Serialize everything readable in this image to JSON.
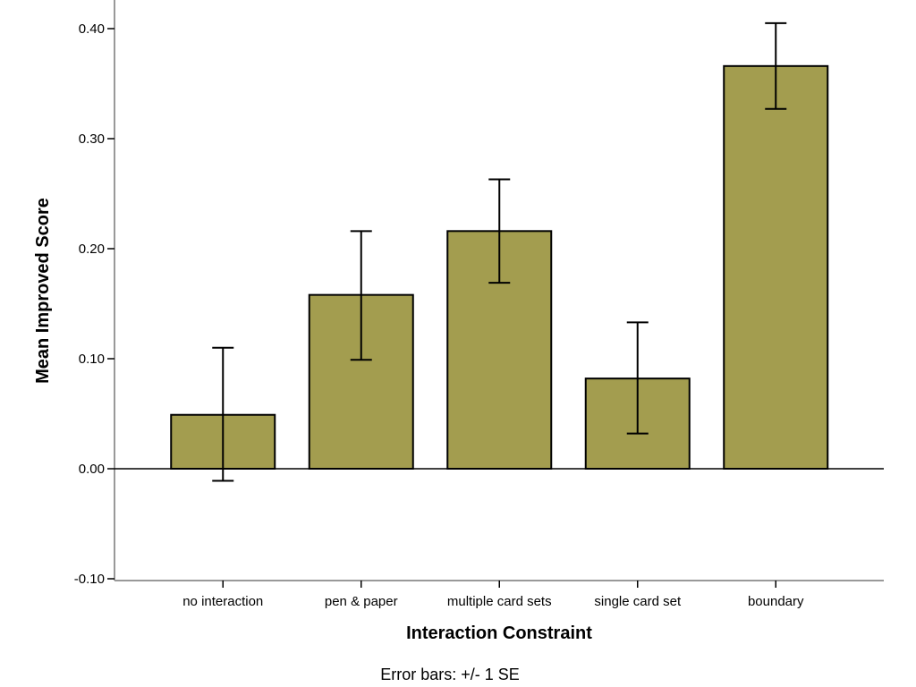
{
  "colors": {
    "bar_fill": "#a39d4f",
    "bar_stroke": "#000000",
    "axis_frame": "#999999"
  },
  "chart_data": {
    "type": "bar",
    "title": "",
    "xlabel": "Interaction Constraint",
    "ylabel": "Mean Improved Score",
    "ylim": [
      -0.1,
      0.4
    ],
    "yticks": [
      -0.1,
      0.0,
      0.1,
      0.2,
      0.3,
      0.4
    ],
    "ytick_labels": [
      "-0.10",
      "0.00",
      "0.10",
      "0.20",
      "0.30",
      "0.40"
    ],
    "categories": [
      "no interaction",
      "pen & paper",
      "multiple card sets",
      "single card set",
      "boundary"
    ],
    "values": [
      0.049,
      0.158,
      0.216,
      0.082,
      0.366
    ],
    "error_low": [
      -0.011,
      0.099,
      0.169,
      0.032,
      0.327
    ],
    "error_high": [
      0.11,
      0.216,
      0.263,
      0.133,
      0.405
    ],
    "error_note": "Error bars: +/- 1 SE",
    "grid": false,
    "legend": "none"
  }
}
